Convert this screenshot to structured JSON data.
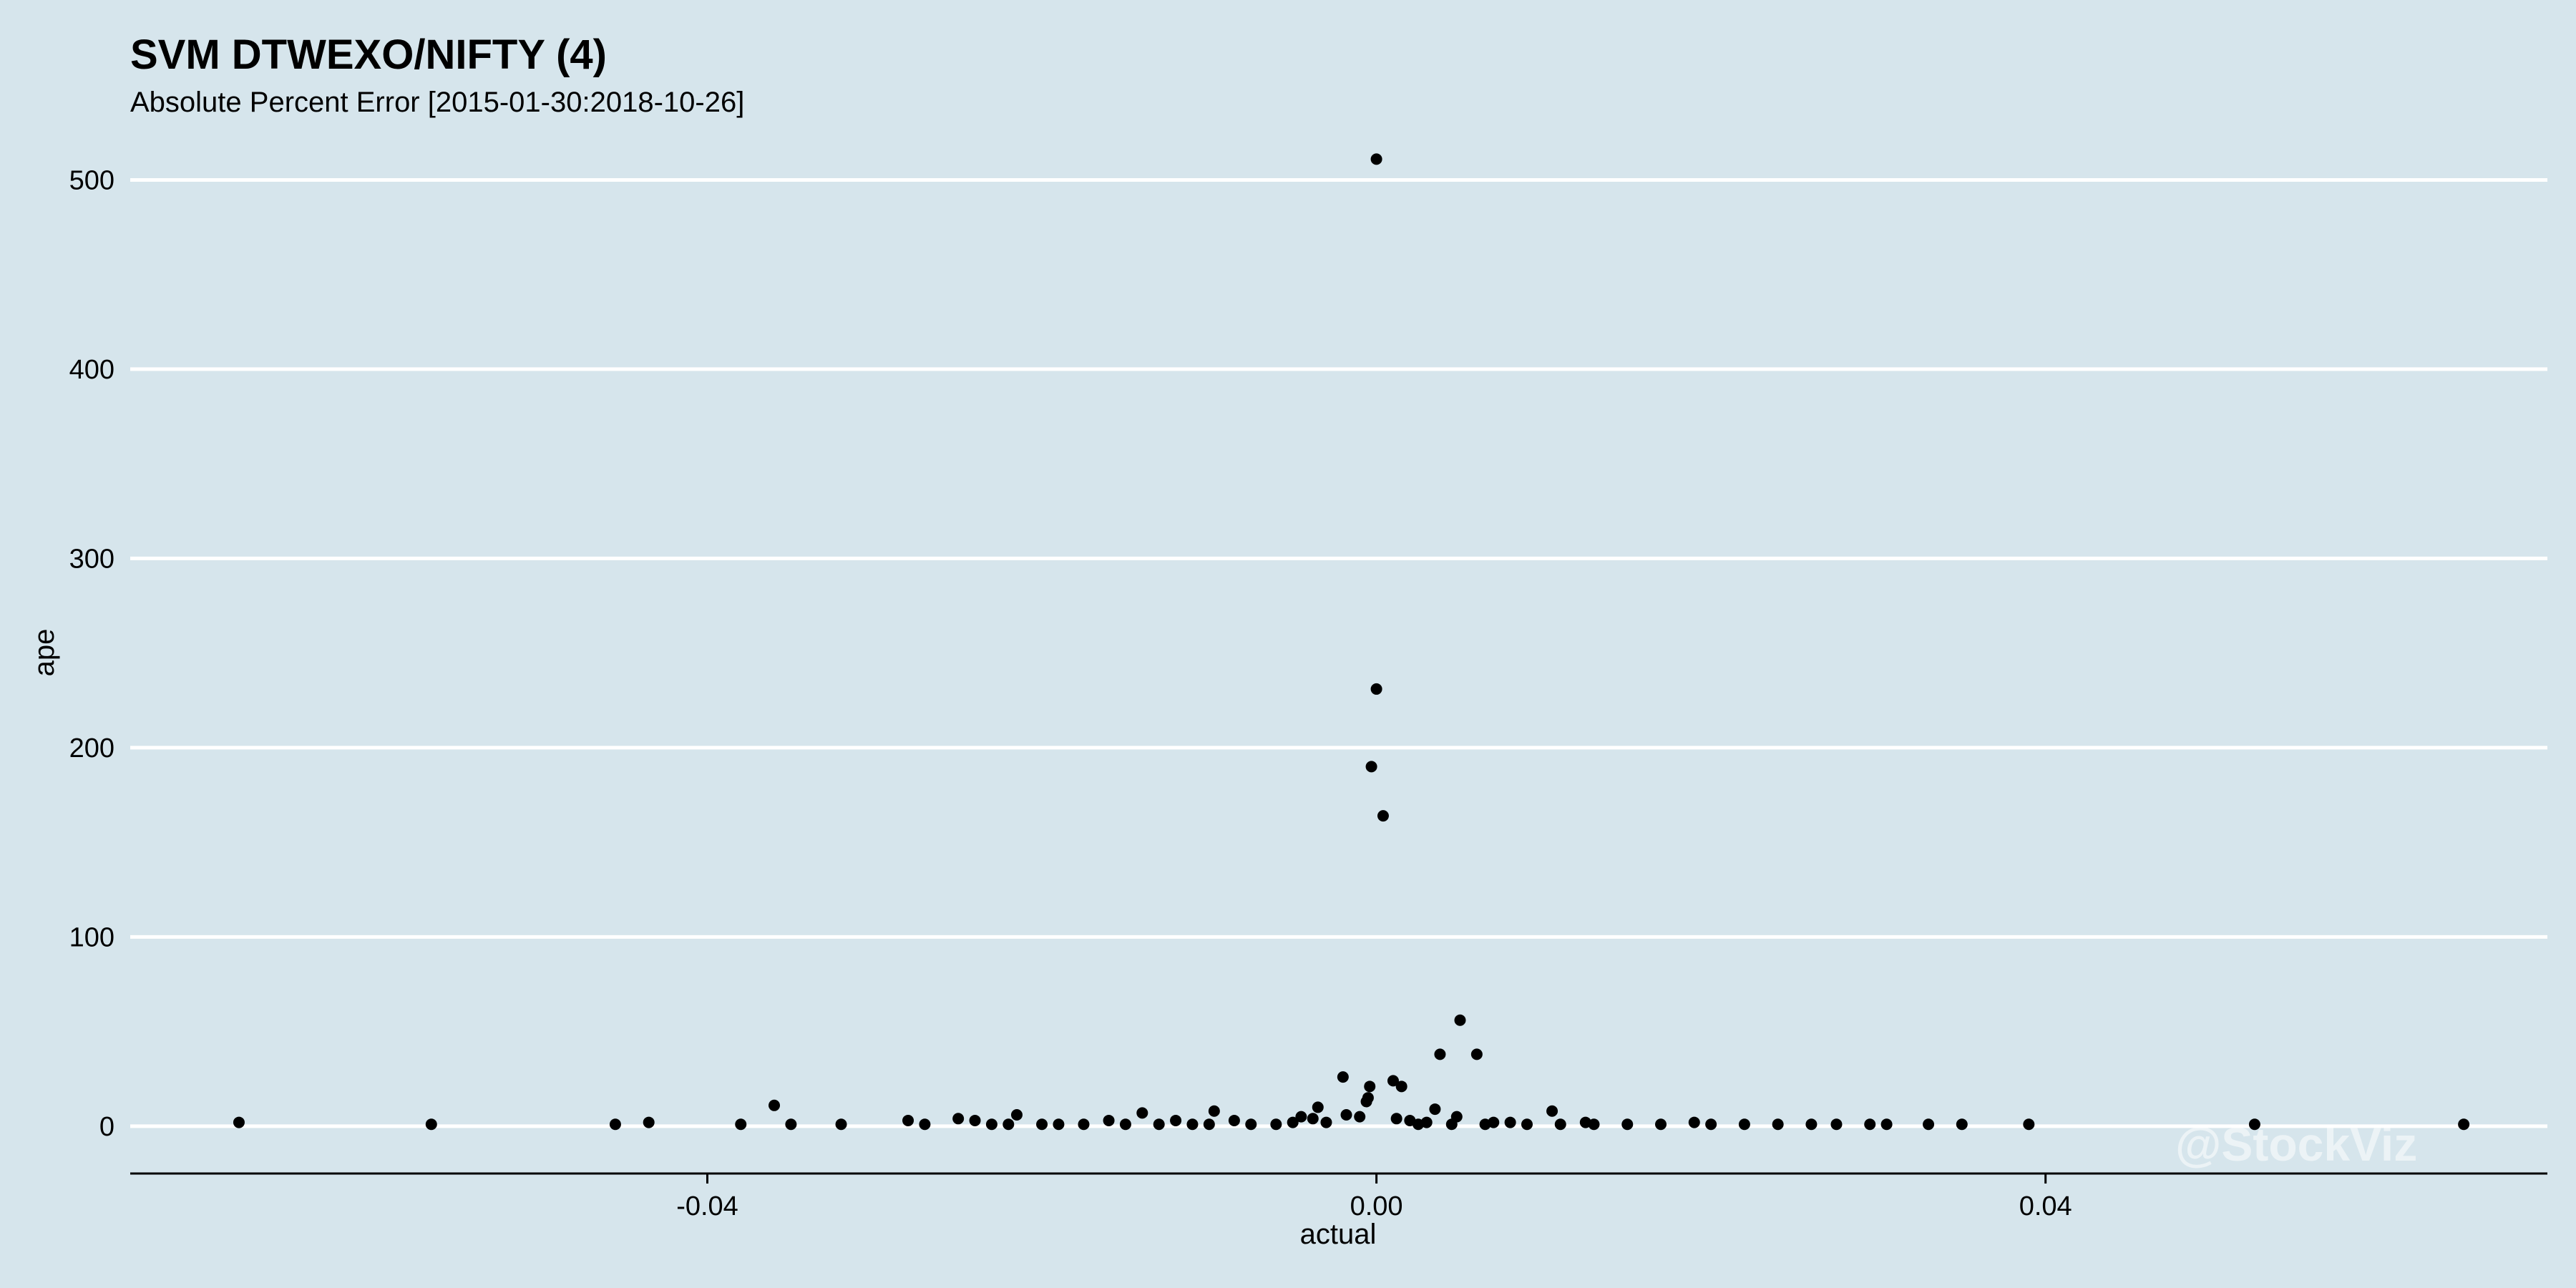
{
  "chart_data": {
    "type": "scatter",
    "title": "SVM DTWEXO/NIFTY (4)",
    "subtitle": "Absolute Percent Error [2015-01-30:2018-10-26]",
    "xlabel": "actual",
    "ylabel": "ape",
    "xlim": [
      -0.0745,
      0.07
    ],
    "ylim": [
      -25,
      510
    ],
    "x_ticks": [
      -0.04,
      0.0,
      0.04
    ],
    "x_tick_labels": [
      "-0.04",
      "0.00",
      "0.04"
    ],
    "y_ticks": [
      0,
      100,
      200,
      300,
      400,
      500
    ],
    "y_tick_labels": [
      "0",
      "100",
      "200",
      "300",
      "400",
      "500"
    ],
    "grid": "horizontal",
    "legend": "none",
    "watermark": "@StockViz",
    "colors": {
      "background": "#d6e5ec",
      "points": "#000000",
      "gridlines": "#ffffff"
    },
    "points": [
      {
        "x": 0.0,
        "y": 511
      },
      {
        "x": 0.0,
        "y": 231
      },
      {
        "x": -0.0003,
        "y": 190
      },
      {
        "x": 0.0004,
        "y": 164
      },
      {
        "x": 0.005,
        "y": 56
      },
      {
        "x": 0.0038,
        "y": 38
      },
      {
        "x": 0.006,
        "y": 38
      },
      {
        "x": -0.002,
        "y": 26
      },
      {
        "x": 0.001,
        "y": 24
      },
      {
        "x": -0.0004,
        "y": 21
      },
      {
        "x": 0.0015,
        "y": 21
      },
      {
        "x": -0.0005,
        "y": 15
      },
      {
        "x": -0.0006,
        "y": 13
      },
      {
        "x": -0.036,
        "y": 11
      },
      {
        "x": -0.0035,
        "y": 10
      },
      {
        "x": 0.0035,
        "y": 9
      },
      {
        "x": 0.0105,
        "y": 8
      },
      {
        "x": -0.0097,
        "y": 8
      },
      {
        "x": -0.014,
        "y": 7
      },
      {
        "x": -0.0215,
        "y": 6
      },
      {
        "x": -0.0018,
        "y": 6
      },
      {
        "x": -0.001,
        "y": 5
      },
      {
        "x": -0.0045,
        "y": 5
      },
      {
        "x": 0.0048,
        "y": 5
      },
      {
        "x": -0.025,
        "y": 4
      },
      {
        "x": -0.0038,
        "y": 4
      },
      {
        "x": 0.0012,
        "y": 4
      },
      {
        "x": -0.028,
        "y": 3
      },
      {
        "x": -0.024,
        "y": 3
      },
      {
        "x": -0.016,
        "y": 3
      },
      {
        "x": -0.012,
        "y": 3
      },
      {
        "x": -0.0085,
        "y": 3
      },
      {
        "x": -0.003,
        "y": 2
      },
      {
        "x": 0.002,
        "y": 3
      },
      {
        "x": 0.003,
        "y": 2
      },
      {
        "x": 0.007,
        "y": 2
      },
      {
        "x": 0.008,
        "y": 2
      },
      {
        "x": 0.0125,
        "y": 2
      },
      {
        "x": 0.019,
        "y": 2
      },
      {
        "x": -0.068,
        "y": 2
      },
      {
        "x": -0.0565,
        "y": 1
      },
      {
        "x": -0.0455,
        "y": 1
      },
      {
        "x": -0.0435,
        "y": 2
      },
      {
        "x": -0.038,
        "y": 1
      },
      {
        "x": -0.035,
        "y": 1
      },
      {
        "x": -0.032,
        "y": 1
      },
      {
        "x": -0.027,
        "y": 1
      },
      {
        "x": -0.023,
        "y": 1
      },
      {
        "x": -0.022,
        "y": 1
      },
      {
        "x": -0.02,
        "y": 1
      },
      {
        "x": -0.019,
        "y": 1
      },
      {
        "x": -0.0175,
        "y": 1
      },
      {
        "x": -0.015,
        "y": 1
      },
      {
        "x": -0.013,
        "y": 1
      },
      {
        "x": -0.011,
        "y": 1
      },
      {
        "x": -0.01,
        "y": 1
      },
      {
        "x": -0.0075,
        "y": 1
      },
      {
        "x": -0.006,
        "y": 1
      },
      {
        "x": -0.005,
        "y": 2
      },
      {
        "x": 0.0025,
        "y": 1
      },
      {
        "x": 0.0045,
        "y": 1
      },
      {
        "x": 0.0065,
        "y": 1
      },
      {
        "x": 0.009,
        "y": 1
      },
      {
        "x": 0.011,
        "y": 1
      },
      {
        "x": 0.013,
        "y": 1
      },
      {
        "x": 0.015,
        "y": 1
      },
      {
        "x": 0.017,
        "y": 1
      },
      {
        "x": 0.02,
        "y": 1
      },
      {
        "x": 0.022,
        "y": 1
      },
      {
        "x": 0.024,
        "y": 1
      },
      {
        "x": 0.026,
        "y": 1
      },
      {
        "x": 0.0275,
        "y": 1
      },
      {
        "x": 0.0295,
        "y": 1
      },
      {
        "x": 0.0305,
        "y": 1
      },
      {
        "x": 0.033,
        "y": 1
      },
      {
        "x": 0.035,
        "y": 1
      },
      {
        "x": 0.039,
        "y": 1
      },
      {
        "x": 0.0525,
        "y": 1
      },
      {
        "x": 0.065,
        "y": 1
      }
    ]
  }
}
